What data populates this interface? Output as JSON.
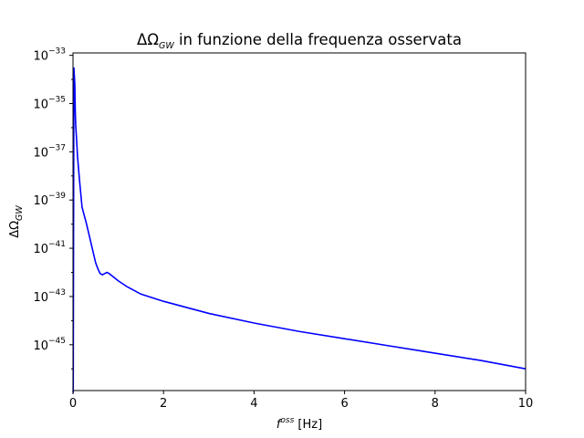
{
  "chart_data": {
    "type": "line",
    "title": "ΔΩ",
    "title_subscript": "GW",
    "title_rest": " in funzione della frequenza osservata",
    "xlabel_main": "f",
    "xlabel_sup": "oss",
    "xlabel_unit": " [Hz]",
    "ylabel_main": "ΔΩ",
    "ylabel_sub": "GW",
    "xlim": [
      0,
      10
    ],
    "ylim_log10": [
      -46.9,
      -32.9
    ],
    "yscale": "log",
    "grid": false,
    "line_color": "#0000ff",
    "x_ticks": [
      0,
      2,
      4,
      6,
      8,
      10
    ],
    "x_tick_labels": [
      "0",
      "2",
      "4",
      "6",
      "8",
      "10"
    ],
    "y_ticks_log10": [
      -33,
      -35,
      -37,
      -39,
      -41,
      -43,
      -45
    ],
    "y_tick_base": "10",
    "y_tick_exponents": [
      "−33",
      "−35",
      "−37",
      "−39",
      "−41",
      "−43",
      "−45"
    ],
    "series": [
      {
        "color": "#0000ff",
        "x": [
          0.005,
          0.02,
          0.04,
          0.05,
          0.06,
          0.08,
          0.1,
          0.15,
          0.2,
          0.3,
          0.4,
          0.5,
          0.55,
          0.6,
          0.65,
          0.7,
          0.75,
          0.8,
          0.9,
          1.0,
          1.2,
          1.5,
          2.0,
          2.5,
          3.0,
          4.0,
          5.0,
          6.0,
          7.0,
          8.0,
          9.0,
          10.0
        ],
        "y_log10": [
          -47.0,
          -33.5,
          -34.2,
          -35.3,
          -35.9,
          -36.5,
          -37.2,
          -38.3,
          -39.3,
          -40.0,
          -40.8,
          -41.6,
          -41.85,
          -42.05,
          -42.1,
          -42.05,
          -42.0,
          -42.05,
          -42.2,
          -42.35,
          -42.6,
          -42.9,
          -43.2,
          -43.45,
          -43.7,
          -44.1,
          -44.45,
          -44.75,
          -45.05,
          -45.35,
          -45.65,
          -46.0
        ]
      }
    ]
  }
}
